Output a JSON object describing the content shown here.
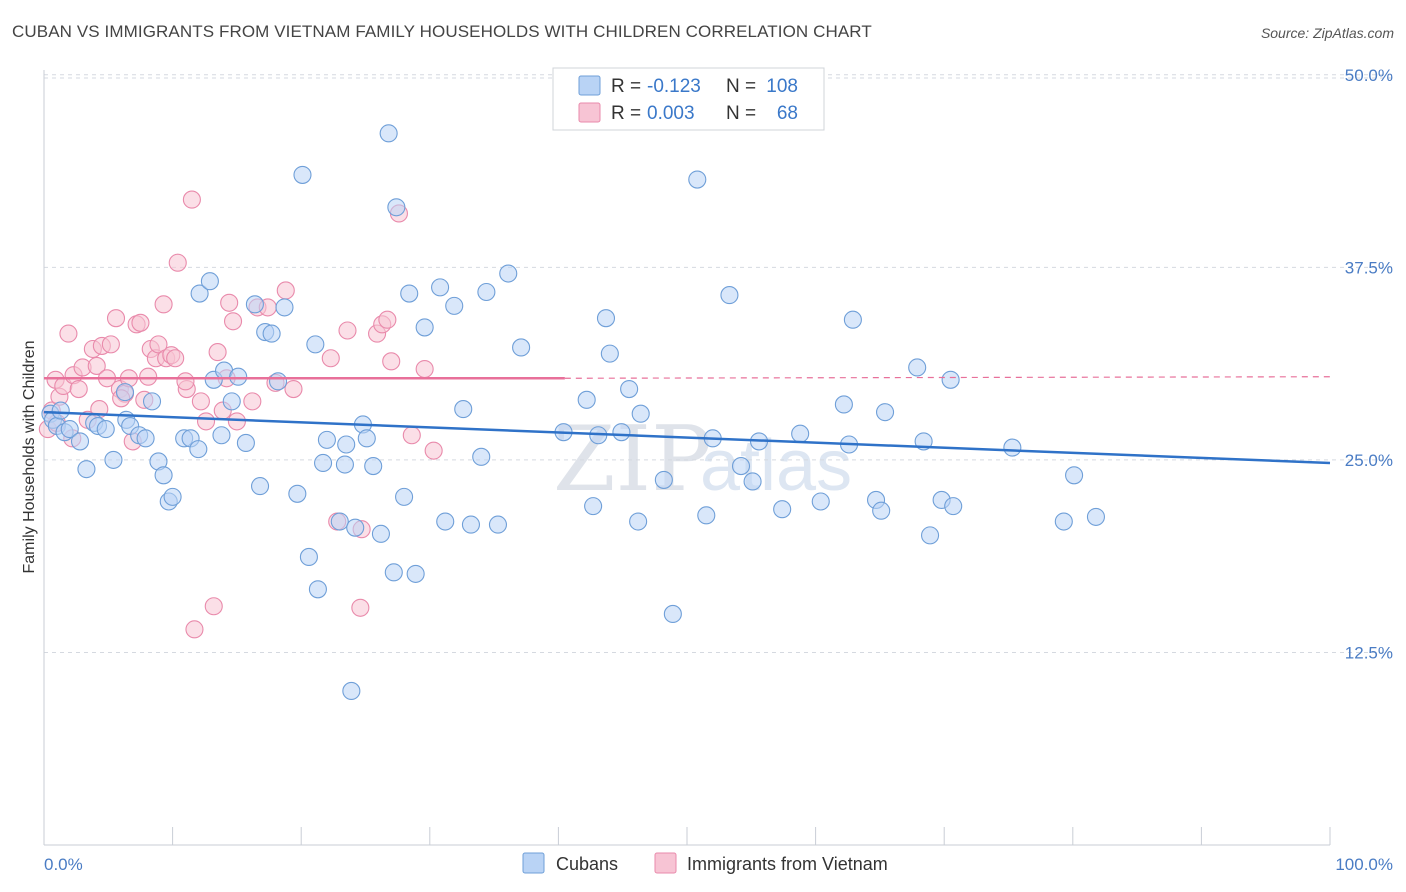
{
  "title": "CUBAN VS IMMIGRANTS FROM VIETNAM FAMILY HOUSEHOLDS WITH CHILDREN CORRELATION CHART",
  "source": "Source: ZipAtlas.com",
  "watermark": {
    "zip": "ZIP",
    "atlas": "atlas"
  },
  "colors": {
    "cubans_fill": "#b9d3f5",
    "cubans_stroke": "#6f9fd8",
    "cubans_line": "#2f72c8",
    "vietnam_fill": "#f7c4d4",
    "vietnam_stroke": "#e98aab",
    "vietnam_line": "#e8709a",
    "tick_label": "#4a7cc4",
    "grid": "#d5d9e0"
  },
  "legend": {
    "rows": [
      {
        "r_label": "R = ",
        "r_value": "-0.123",
        "n_label": "N = ",
        "n_value": "108"
      },
      {
        "r_label": "R = ",
        "r_value": "0.003",
        "n_label": "N = ",
        "n_value": "68"
      }
    ]
  },
  "chart_data": {
    "type": "scatter",
    "title": "CUBAN VS IMMIGRANTS FROM VIETNAM FAMILY HOUSEHOLDS WITH CHILDREN CORRELATION CHART",
    "xlabel": "",
    "ylabel": "Family Households with Children",
    "xlim": [
      0,
      100
    ],
    "ylim": [
      0,
      52
    ],
    "x_tick_labels": [
      "0.0%",
      "100.0%"
    ],
    "y_ticks": [
      12.5,
      25.0,
      37.5,
      50.0
    ],
    "y_tick_labels": [
      "12.5%",
      "25.0%",
      "37.5%",
      "50.0%"
    ],
    "grid": true,
    "legend_position": "top-center",
    "series": [
      {
        "name": "Cubans",
        "trend": {
          "x": [
            0,
            100
          ],
          "y": [
            28.1,
            24.8
          ]
        },
        "points": [
          [
            0.5,
            28.0
          ],
          [
            0.7,
            27.6
          ],
          [
            1.0,
            27.2
          ],
          [
            1.3,
            28.2
          ],
          [
            1.6,
            26.8
          ],
          [
            2.0,
            27.0
          ],
          [
            2.8,
            26.2
          ],
          [
            3.3,
            24.4
          ],
          [
            3.9,
            27.4
          ],
          [
            4.2,
            27.2
          ],
          [
            4.8,
            27.0
          ],
          [
            5.4,
            25.0
          ],
          [
            6.3,
            29.4
          ],
          [
            6.4,
            27.6
          ],
          [
            6.7,
            27.2
          ],
          [
            7.4,
            26.6
          ],
          [
            7.9,
            26.4
          ],
          [
            8.4,
            28.8
          ],
          [
            8.9,
            24.9
          ],
          [
            9.3,
            24.0
          ],
          [
            9.7,
            22.3
          ],
          [
            10.0,
            22.6
          ],
          [
            10.9,
            26.4
          ],
          [
            11.4,
            26.4
          ],
          [
            12.0,
            25.7
          ],
          [
            12.1,
            35.8
          ],
          [
            12.9,
            36.6
          ],
          [
            13.2,
            30.2
          ],
          [
            13.8,
            26.6
          ],
          [
            14.0,
            30.8
          ],
          [
            14.6,
            28.8
          ],
          [
            15.1,
            30.4
          ],
          [
            15.7,
            26.1
          ],
          [
            16.4,
            35.1
          ],
          [
            16.8,
            23.3
          ],
          [
            17.2,
            33.3
          ],
          [
            17.7,
            33.2
          ],
          [
            18.2,
            30.1
          ],
          [
            18.7,
            34.9
          ],
          [
            19.7,
            22.8
          ],
          [
            20.1,
            43.5
          ],
          [
            20.6,
            18.7
          ],
          [
            21.1,
            32.5
          ],
          [
            21.3,
            16.6
          ],
          [
            21.7,
            24.8
          ],
          [
            22.0,
            26.3
          ],
          [
            23.0,
            21.0
          ],
          [
            23.5,
            26.0
          ],
          [
            23.9,
            10.0
          ],
          [
            24.2,
            20.6
          ],
          [
            24.8,
            27.3
          ],
          [
            25.1,
            26.4
          ],
          [
            25.6,
            24.6
          ],
          [
            26.2,
            20.2
          ],
          [
            26.8,
            46.2
          ],
          [
            27.2,
            17.7
          ],
          [
            27.4,
            41.4
          ],
          [
            28.0,
            22.6
          ],
          [
            28.4,
            35.8
          ],
          [
            28.9,
            17.6
          ],
          [
            29.6,
            33.6
          ],
          [
            30.8,
            36.2
          ],
          [
            31.2,
            21.0
          ],
          [
            31.9,
            35.0
          ],
          [
            32.6,
            28.3
          ],
          [
            33.2,
            20.8
          ],
          [
            34.0,
            25.2
          ],
          [
            34.4,
            35.9
          ],
          [
            35.3,
            20.8
          ],
          [
            36.1,
            37.1
          ],
          [
            37.1,
            32.3
          ],
          [
            40.4,
            26.8
          ],
          [
            42.2,
            28.9
          ],
          [
            42.7,
            22.0
          ],
          [
            43.1,
            26.6
          ],
          [
            43.7,
            34.2
          ],
          [
            44.0,
            31.9
          ],
          [
            44.9,
            26.8
          ],
          [
            45.5,
            29.6
          ],
          [
            46.2,
            21.0
          ],
          [
            46.4,
            28.0
          ],
          [
            48.2,
            23.7
          ],
          [
            48.9,
            15.0
          ],
          [
            50.8,
            43.2
          ],
          [
            51.5,
            21.4
          ],
          [
            52.0,
            26.4
          ],
          [
            53.3,
            35.7
          ],
          [
            54.2,
            24.6
          ],
          [
            55.1,
            23.6
          ],
          [
            55.6,
            26.2
          ],
          [
            57.4,
            21.8
          ],
          [
            58.8,
            26.7
          ],
          [
            60.4,
            22.3
          ],
          [
            62.2,
            28.6
          ],
          [
            62.6,
            26.0
          ],
          [
            62.9,
            34.1
          ],
          [
            64.7,
            22.4
          ],
          [
            65.1,
            21.7
          ],
          [
            65.4,
            28.1
          ],
          [
            67.9,
            31.0
          ],
          [
            68.4,
            26.2
          ],
          [
            68.9,
            20.1
          ],
          [
            69.8,
            22.4
          ],
          [
            70.5,
            30.2
          ],
          [
            70.7,
            22.0
          ],
          [
            75.3,
            25.8
          ],
          [
            79.3,
            21.0
          ],
          [
            80.1,
            24.0
          ],
          [
            81.8,
            21.3
          ],
          [
            23.4,
            24.7
          ]
        ]
      },
      {
        "name": "Immigrants from Vietnam",
        "trend": {
          "x": [
            0,
            40.5
          ],
          "y": [
            30.3,
            30.3
          ]
        },
        "trend_extension": {
          "x": [
            40.5,
            100
          ],
          "y": [
            30.3,
            30.4
          ]
        },
        "points": [
          [
            0.3,
            27.0
          ],
          [
            0.6,
            28.2
          ],
          [
            0.9,
            30.2
          ],
          [
            1.2,
            29.1
          ],
          [
            1.5,
            29.8
          ],
          [
            1.9,
            33.2
          ],
          [
            2.3,
            30.5
          ],
          [
            2.7,
            29.6
          ],
          [
            3.0,
            31.0
          ],
          [
            3.4,
            27.6
          ],
          [
            3.8,
            32.2
          ],
          [
            4.1,
            31.1
          ],
          [
            4.5,
            32.4
          ],
          [
            4.9,
            30.3
          ],
          [
            5.2,
            32.5
          ],
          [
            5.6,
            34.2
          ],
          [
            5.9,
            29.6
          ],
          [
            6.3,
            29.3
          ],
          [
            6.6,
            30.3
          ],
          [
            6.9,
            26.2
          ],
          [
            7.2,
            33.8
          ],
          [
            7.5,
            33.9
          ],
          [
            7.8,
            28.9
          ],
          [
            8.1,
            30.4
          ],
          [
            8.3,
            32.2
          ],
          [
            8.7,
            31.6
          ],
          [
            8.9,
            32.5
          ],
          [
            9.3,
            35.1
          ],
          [
            9.5,
            31.6
          ],
          [
            9.9,
            31.8
          ],
          [
            10.2,
            31.6
          ],
          [
            10.4,
            37.8
          ],
          [
            11.1,
            29.6
          ],
          [
            11.5,
            41.9
          ],
          [
            11.7,
            14.0
          ],
          [
            12.2,
            28.8
          ],
          [
            12.6,
            27.5
          ],
          [
            13.2,
            15.5
          ],
          [
            13.5,
            32.0
          ],
          [
            13.9,
            28.2
          ],
          [
            14.2,
            30.3
          ],
          [
            14.4,
            35.2
          ],
          [
            15.0,
            27.5
          ],
          [
            16.2,
            28.8
          ],
          [
            16.6,
            34.9
          ],
          [
            17.4,
            34.9
          ],
          [
            18.0,
            30.0
          ],
          [
            18.8,
            36.0
          ],
          [
            19.4,
            29.6
          ],
          [
            22.3,
            31.6
          ],
          [
            22.8,
            21.0
          ],
          [
            23.6,
            33.4
          ],
          [
            24.6,
            15.4
          ],
          [
            25.9,
            33.2
          ],
          [
            26.3,
            33.8
          ],
          [
            26.7,
            34.1
          ],
          [
            27.0,
            31.4
          ],
          [
            27.6,
            41.0
          ],
          [
            28.6,
            26.6
          ],
          [
            29.6,
            30.9
          ],
          [
            30.3,
            25.6
          ],
          [
            1.0,
            27.4
          ],
          [
            2.2,
            26.4
          ],
          [
            4.3,
            28.3
          ],
          [
            6.0,
            29.0
          ],
          [
            11.0,
            30.1
          ],
          [
            14.7,
            34.0
          ],
          [
            24.7,
            20.5
          ]
        ]
      }
    ]
  },
  "bottom_legend": {
    "items": [
      "Cubans",
      "Immigrants from Vietnam"
    ]
  }
}
